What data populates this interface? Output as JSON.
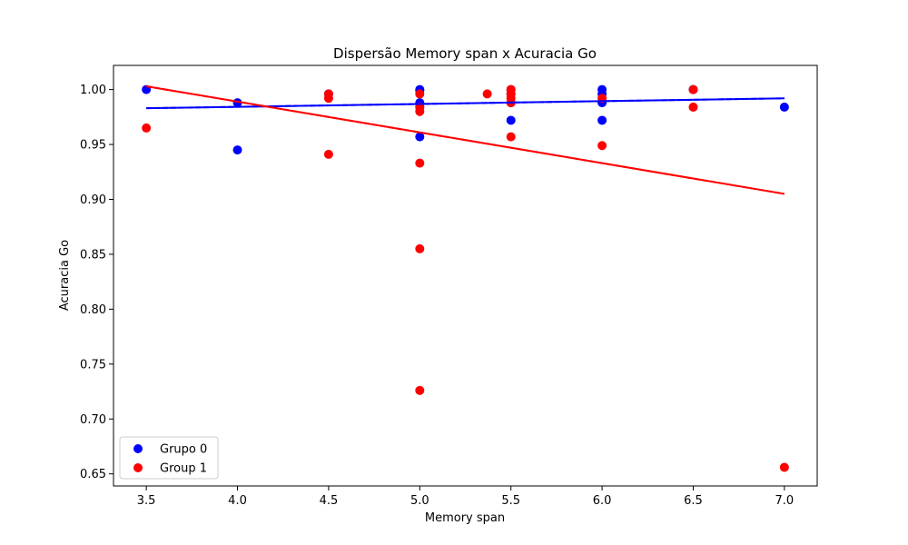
{
  "chart_data": {
    "type": "scatter",
    "title": "Dispersão Memory span x Acuracia Go",
    "xlabel": "Memory span",
    "ylabel": "Acuracia Go",
    "xlim": [
      3.32,
      7.18
    ],
    "ylim": [
      0.639,
      1.022
    ],
    "xticks": [
      3.5,
      4.0,
      4.5,
      5.0,
      5.5,
      6.0,
      6.5,
      7.0
    ],
    "xtick_labels": [
      "3.5",
      "4.0",
      "4.5",
      "5.0",
      "5.5",
      "6.0",
      "6.5",
      "7.0"
    ],
    "yticks": [
      0.65,
      0.7,
      0.75,
      0.8,
      0.85,
      0.9,
      0.95,
      1.0
    ],
    "ytick_labels": [
      "0.65",
      "0.70",
      "0.75",
      "0.80",
      "0.85",
      "0.90",
      "0.95",
      "1.00"
    ],
    "grid": false,
    "legend_position": "lower-left",
    "series": [
      {
        "name": "Grupo 0",
        "color": "#0000ff",
        "points": [
          [
            3.5,
            1.0
          ],
          [
            4.0,
            0.988
          ],
          [
            4.0,
            0.945
          ],
          [
            4.5,
            0.996
          ],
          [
            5.0,
            1.0
          ],
          [
            5.0,
            0.999
          ],
          [
            5.0,
            0.988
          ],
          [
            5.0,
            0.984
          ],
          [
            5.0,
            0.957
          ],
          [
            5.5,
            1.0
          ],
          [
            5.5,
            0.996
          ],
          [
            5.5,
            0.988
          ],
          [
            5.5,
            0.972
          ],
          [
            6.0,
            1.0
          ],
          [
            6.0,
            0.996
          ],
          [
            6.0,
            0.988
          ],
          [
            6.0,
            0.972
          ],
          [
            6.5,
            1.0
          ],
          [
            7.0,
            0.984
          ]
        ],
        "trend": {
          "x": [
            3.5,
            7.0
          ],
          "y": [
            0.983,
            0.992
          ]
        }
      },
      {
        "name": "Group 1",
        "color": "#ff0000",
        "points": [
          [
            3.5,
            0.965
          ],
          [
            4.5,
            0.996
          ],
          [
            4.5,
            0.992
          ],
          [
            4.5,
            0.941
          ],
          [
            5.0,
            0.996
          ],
          [
            5.0,
            0.984
          ],
          [
            5.0,
            0.98
          ],
          [
            5.0,
            0.933
          ],
          [
            5.0,
            0.855
          ],
          [
            5.0,
            0.726
          ],
          [
            5.37,
            0.996
          ],
          [
            5.5,
            1.0
          ],
          [
            5.5,
            0.996
          ],
          [
            5.5,
            0.992
          ],
          [
            5.5,
            0.988
          ],
          [
            5.5,
            0.957
          ],
          [
            6.0,
            0.992
          ],
          [
            6.0,
            0.949
          ],
          [
            6.5,
            1.0
          ],
          [
            6.5,
            0.984
          ],
          [
            7.0,
            0.656
          ]
        ],
        "trend": {
          "x": [
            3.5,
            7.0
          ],
          "y": [
            1.003,
            0.905
          ]
        }
      }
    ]
  }
}
